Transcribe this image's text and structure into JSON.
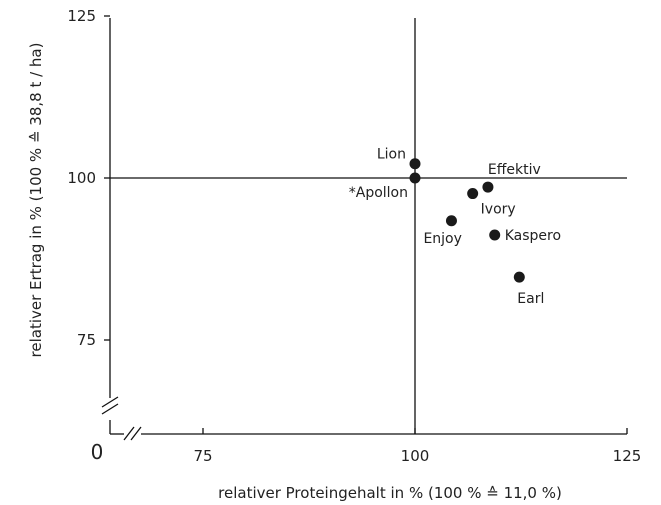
{
  "chart_data": {
    "type": "scatter",
    "title": "",
    "xlabel": "relativer Proteingehalt in % (100 % ≙ 11,0 %)",
    "ylabel": "relativer Ertrag in % (100 % ≙ 38,8 t / ha)",
    "xlim": [
      75,
      125
    ],
    "ylim": [
      75,
      125
    ],
    "x_ticks": [
      "75",
      "100",
      "125"
    ],
    "y_ticks": [
      "75",
      "100",
      "125"
    ],
    "origin_label": "0",
    "axis_breaks": true,
    "reference_lines": {
      "x": 100,
      "y": 100
    },
    "marker_color": "#1a1a1a",
    "points": [
      {
        "label": "Lion",
        "x": 100.0,
        "y": 102.2
      },
      {
        "label": "*Apollon",
        "x": 100.0,
        "y": 100.0
      },
      {
        "label": "Effektiv",
        "x": 108.6,
        "y": 98.6
      },
      {
        "label": "Ivory",
        "x": 106.8,
        "y": 97.6
      },
      {
        "label": "Enjoy",
        "x": 104.3,
        "y": 93.4
      },
      {
        "label": "Kaspero",
        "x": 109.4,
        "y": 91.2
      },
      {
        "label": "Earl",
        "x": 112.3,
        "y": 84.7
      }
    ]
  }
}
